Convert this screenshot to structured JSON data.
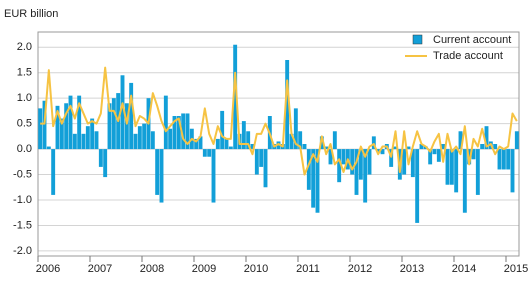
{
  "chart_data": {
    "type": "bar-line",
    "title": "EUR billion",
    "categories": [
      "2006",
      null,
      null,
      null,
      null,
      null,
      null,
      null,
      null,
      null,
      null,
      null,
      "2007",
      null,
      null,
      null,
      null,
      null,
      null,
      null,
      null,
      null,
      null,
      null,
      "2008",
      null,
      null,
      null,
      null,
      null,
      null,
      null,
      null,
      null,
      null,
      null,
      "2009",
      null,
      null,
      null,
      null,
      null,
      null,
      null,
      null,
      null,
      null,
      null,
      "2010",
      null,
      null,
      null,
      null,
      null,
      null,
      null,
      null,
      null,
      null,
      null,
      "2011",
      null,
      null,
      null,
      null,
      null,
      null,
      null,
      null,
      null,
      null,
      null,
      "2012",
      null,
      null,
      null,
      null,
      null,
      null,
      null,
      null,
      null,
      null,
      null,
      "2013",
      null,
      null,
      null,
      null,
      null,
      null,
      null,
      null,
      null,
      null,
      null,
      "2014",
      null,
      null,
      null,
      null,
      null,
      null,
      null,
      null,
      null,
      null,
      null,
      "2015",
      null,
      null
    ],
    "series": [
      {
        "name": "Current account",
        "type": "bar",
        "color": "#129fd8",
        "values": [
          0.8,
          0.95,
          0.05,
          -0.9,
          0.85,
          0.6,
          0.9,
          1.05,
          0.3,
          1.05,
          0.3,
          0.45,
          0.6,
          0.35,
          -0.35,
          -0.55,
          0.9,
          1.0,
          1.1,
          1.45,
          0.9,
          1.3,
          0.3,
          0.45,
          0.5,
          1.0,
          0.35,
          -0.9,
          -1.05,
          1.05,
          0.4,
          0.65,
          0.65,
          0.7,
          0.7,
          0.4,
          0.2,
          0.25,
          -0.15,
          -0.15,
          -1.05,
          0.2,
          0.75,
          0.2,
          0.05,
          2.05,
          0.3,
          0.55,
          0.35,
          0.1,
          -0.5,
          -0.35,
          -0.75,
          0.65,
          0.1,
          0.15,
          0.1,
          1.75,
          0.3,
          0.8,
          0.35,
          0.1,
          -0.8,
          -1.15,
          -1.25,
          0.25,
          0.05,
          -0.3,
          0.35,
          -0.65,
          -0.3,
          -0.4,
          -0.5,
          -0.9,
          -0.6,
          -1.05,
          -0.5,
          0.25,
          -0.05,
          -0.1,
          0.1,
          -0.35,
          0.05,
          -0.6,
          -0.5,
          0.05,
          -0.55,
          -1.45,
          0.1,
          0.05,
          -0.3,
          -0.1,
          -0.25,
          0.1,
          -0.7,
          -0.7,
          -0.85,
          0.35,
          -1.25,
          -0.3,
          -0.2,
          -0.9,
          0.1,
          0.45,
          0.15,
          0.1,
          -0.4,
          -0.4,
          -0.4,
          -0.85,
          0.35
        ]
      },
      {
        "name": "Trade account",
        "type": "line",
        "color": "#f6c343",
        "values": [
          0.5,
          0.5,
          1.55,
          0.45,
          0.75,
          0.5,
          0.7,
          0.85,
          0.6,
          0.9,
          0.7,
          0.5,
          0.55,
          0.5,
          0.7,
          1.6,
          0.75,
          0.75,
          0.55,
          0.9,
          0.5,
          1.05,
          0.45,
          0.65,
          0.6,
          0.5,
          1.1,
          0.85,
          0.55,
          0.35,
          0.45,
          0.55,
          0.6,
          0.2,
          0.1,
          0.2,
          0.15,
          0.25,
          0.8,
          0.3,
          0.1,
          0.45,
          0.25,
          0.2,
          0.2,
          1.5,
          0.1,
          0.1,
          0.1,
          -0.1,
          0.3,
          0.3,
          0.5,
          0.3,
          0.05,
          0.1,
          0.05,
          1.35,
          0.3,
          0.1,
          0.05,
          -0.5,
          -0.3,
          -0.1,
          -0.25,
          0.25,
          -0.1,
          0.1,
          -0.3,
          -0.2,
          -0.45,
          -0.2,
          -0.4,
          -0.25,
          0.05,
          -0.15,
          0.05,
          0.1,
          -0.1,
          0.05,
          0.05,
          -0.15,
          0.35,
          -0.45,
          0.35,
          -0.3,
          0.05,
          0.35,
          0.1,
          0.05,
          -0.05,
          0.15,
          0.3,
          -0.25,
          0.3,
          -0.05,
          0.05,
          -0.1,
          0.45,
          -0.3,
          0.2,
          0.05,
          0.4,
          0.05,
          0.1,
          -0.1,
          0.05,
          0.0,
          0.05,
          0.7,
          0.55
        ]
      }
    ],
    "ylim": [
      -2.1,
      2.3
    ],
    "yticks": [
      {
        "value": 2.0,
        "label": "2.0"
      },
      1.5,
      {
        "value": 1.0,
        "label": "1.0"
      },
      0.5,
      {
        "value": 0.0,
        "label": "0.0"
      },
      -0.5,
      {
        "value": -1.0,
        "label": "-1.0"
      },
      -1.5,
      {
        "value": -2.0,
        "label": "-2.0"
      }
    ],
    "grid": true,
    "legend": "upper right"
  }
}
